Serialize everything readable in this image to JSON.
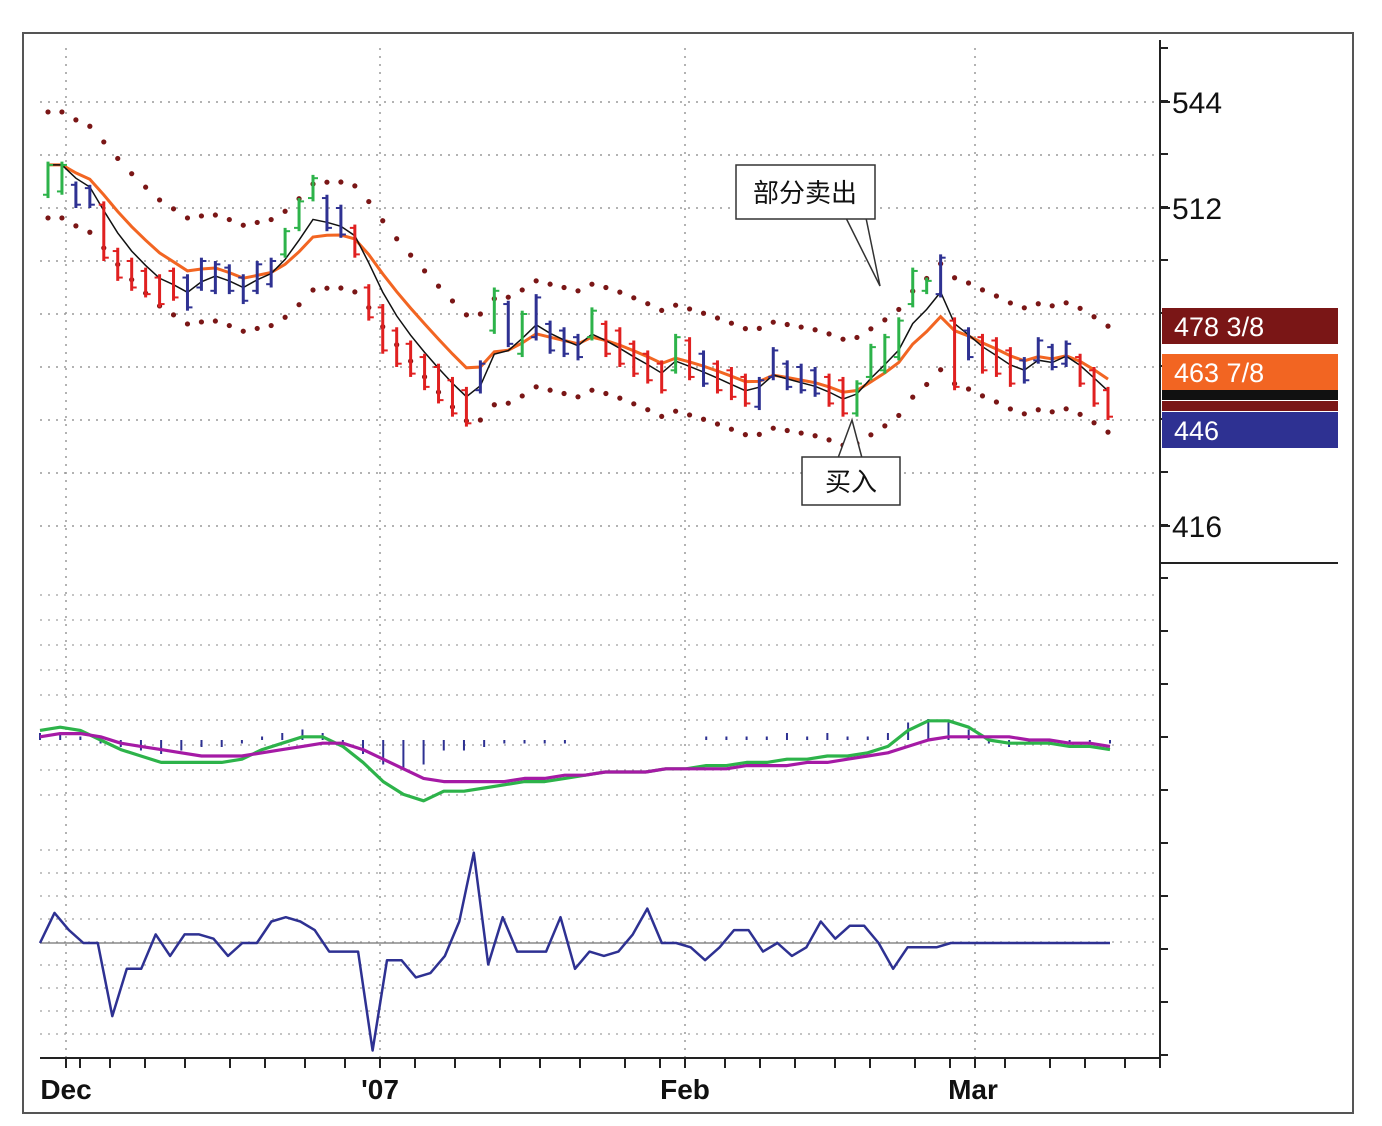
{
  "chart_data": [
    {
      "type": "bar",
      "panel": "price",
      "y_ticks": [
        544,
        512,
        416
      ],
      "ylim": [
        403,
        557
      ],
      "x_ticks": [
        "Dec",
        "'07",
        "Feb",
        "Mar"
      ],
      "price_badges": [
        {
          "label": "478 3/8",
          "value": 478.4,
          "color": "#7a1616"
        },
        {
          "label": "463 7/8",
          "value": 463.9,
          "color": "#f26522"
        },
        {
          "label": "446",
          "value": 446,
          "color": "#2e3192"
        }
      ],
      "annotations": [
        {
          "text": "部分卖出",
          "bar_index": 53
        },
        {
          "text": "买入",
          "bar_index": 51
        }
      ],
      "ohlc_bars": [
        {
          "h": 526,
          "l": 515,
          "o": 516,
          "c": 525,
          "color": "#2db34a"
        },
        {
          "h": 526,
          "l": 516,
          "o": 517,
          "c": 525,
          "color": "#2db34a"
        },
        {
          "h": 520,
          "l": 512,
          "o": 519,
          "c": 513,
          "color": "#2e3192"
        },
        {
          "h": 519,
          "l": 512,
          "o": 518,
          "c": 513,
          "color": "#2e3192"
        },
        {
          "h": 514,
          "l": 496,
          "o": 513,
          "c": 497,
          "color": "#e02020"
        },
        {
          "h": 500,
          "l": 490,
          "o": 499,
          "c": 491,
          "color": "#e02020"
        },
        {
          "h": 497,
          "l": 487,
          "o": 496,
          "c": 488,
          "color": "#e02020"
        },
        {
          "h": 494,
          "l": 485,
          "o": 493,
          "c": 486,
          "color": "#e02020"
        },
        {
          "h": 492,
          "l": 482,
          "o": 491,
          "c": 483,
          "color": "#e02020"
        },
        {
          "h": 494,
          "l": 484,
          "o": 493,
          "c": 485,
          "color": "#e02020"
        },
        {
          "h": 492,
          "l": 481,
          "o": 491,
          "c": 482,
          "color": "#2e3192"
        },
        {
          "h": 497,
          "l": 487,
          "o": 488,
          "c": 496,
          "color": "#2e3192"
        },
        {
          "h": 496,
          "l": 486,
          "o": 487,
          "c": 495,
          "color": "#2e3192"
        },
        {
          "h": 495,
          "l": 486,
          "o": 494,
          "c": 487,
          "color": "#2e3192"
        },
        {
          "h": 492,
          "l": 483,
          "o": 491,
          "c": 484,
          "color": "#2e3192"
        },
        {
          "h": 496,
          "l": 486,
          "o": 487,
          "c": 495,
          "color": "#2e3192"
        },
        {
          "h": 497,
          "l": 488,
          "o": 489,
          "c": 496,
          "color": "#2e3192"
        },
        {
          "h": 506,
          "l": 497,
          "o": 498,
          "c": 505,
          "color": "#2db34a"
        },
        {
          "h": 515,
          "l": 505,
          "o": 506,
          "c": 514,
          "color": "#2db34a"
        },
        {
          "h": 522,
          "l": 514,
          "o": 515,
          "c": 521,
          "color": "#2db34a"
        },
        {
          "h": 516,
          "l": 505,
          "o": 515,
          "c": 506,
          "color": "#2e3192"
        },
        {
          "h": 513,
          "l": 503,
          "o": 512,
          "c": 504,
          "color": "#2e3192"
        },
        {
          "h": 507,
          "l": 497,
          "o": 506,
          "c": 498,
          "color": "#e02020"
        },
        {
          "h": 489,
          "l": 478,
          "o": 488,
          "c": 479,
          "color": "#e02020"
        },
        {
          "h": 483,
          "l": 468,
          "o": 482,
          "c": 469,
          "color": "#e02020"
        },
        {
          "h": 476,
          "l": 464,
          "o": 475,
          "c": 465,
          "color": "#e02020"
        },
        {
          "h": 472,
          "l": 461,
          "o": 471,
          "c": 462,
          "color": "#e02020"
        },
        {
          "h": 468,
          "l": 457,
          "o": 467,
          "c": 458,
          "color": "#e02020"
        },
        {
          "h": 465,
          "l": 453,
          "o": 464,
          "c": 454,
          "color": "#e02020"
        },
        {
          "h": 461,
          "l": 449,
          "o": 460,
          "c": 450,
          "color": "#e02020"
        },
        {
          "h": 458,
          "l": 446,
          "o": 457,
          "c": 447,
          "color": "#e02020"
        },
        {
          "h": 466,
          "l": 456,
          "o": 457,
          "c": 465,
          "color": "#2e3192"
        },
        {
          "h": 488,
          "l": 474,
          "o": 475,
          "c": 487,
          "color": "#2db34a"
        },
        {
          "h": 484,
          "l": 470,
          "o": 483,
          "c": 471,
          "color": "#2e3192"
        },
        {
          "h": 481,
          "l": 467,
          "o": 468,
          "c": 480,
          "color": "#2db34a"
        },
        {
          "h": 486,
          "l": 472,
          "o": 473,
          "c": 485,
          "color": "#2e3192"
        },
        {
          "h": 478,
          "l": 468,
          "o": 477,
          "c": 469,
          "color": "#2e3192"
        },
        {
          "h": 476,
          "l": 467,
          "o": 475,
          "c": 468,
          "color": "#2e3192"
        },
        {
          "h": 474,
          "l": 466,
          "o": 473,
          "c": 467,
          "color": "#2e3192"
        },
        {
          "h": 482,
          "l": 472,
          "o": 473,
          "c": 481,
          "color": "#2db34a"
        },
        {
          "h": 478,
          "l": 467,
          "o": 477,
          "c": 468,
          "color": "#e02020"
        },
        {
          "h": 476,
          "l": 464,
          "o": 475,
          "c": 465,
          "color": "#e02020"
        },
        {
          "h": 472,
          "l": 461,
          "o": 471,
          "c": 462,
          "color": "#e02020"
        },
        {
          "h": 469,
          "l": 459,
          "o": 468,
          "c": 460,
          "color": "#e02020"
        },
        {
          "h": 466,
          "l": 456,
          "o": 465,
          "c": 457,
          "color": "#e02020"
        },
        {
          "h": 474,
          "l": 462,
          "o": 463,
          "c": 473,
          "color": "#2db34a"
        },
        {
          "h": 473,
          "l": 460,
          "o": 472,
          "c": 461,
          "color": "#e02020"
        },
        {
          "h": 469,
          "l": 458,
          "o": 468,
          "c": 459,
          "color": "#2e3192"
        },
        {
          "h": 466,
          "l": 456,
          "o": 465,
          "c": 457,
          "color": "#e02020"
        },
        {
          "h": 464,
          "l": 454,
          "o": 463,
          "c": 455,
          "color": "#e02020"
        },
        {
          "h": 462,
          "l": 452,
          "o": 461,
          "c": 453,
          "color": "#e02020"
        },
        {
          "h": 461,
          "l": 451,
          "o": 452,
          "c": 460,
          "color": "#2e3192"
        },
        {
          "h": 470,
          "l": 460,
          "o": 461,
          "c": 469,
          "color": "#2e3192"
        },
        {
          "h": 466,
          "l": 457,
          "o": 465,
          "c": 458,
          "color": "#2e3192"
        },
        {
          "h": 465,
          "l": 456,
          "o": 464,
          "c": 457,
          "color": "#2e3192"
        },
        {
          "h": 464,
          "l": 455,
          "o": 463,
          "c": 456,
          "color": "#2e3192"
        },
        {
          "h": 462,
          "l": 452,
          "o": 461,
          "c": 453,
          "color": "#e02020"
        },
        {
          "h": 461,
          "l": 449,
          "o": 460,
          "c": 450,
          "color": "#e02020"
        },
        {
          "h": 460,
          "l": 449,
          "o": 450,
          "c": 459,
          "color": "#2db34a"
        },
        {
          "h": 471,
          "l": 460,
          "o": 461,
          "c": 470,
          "color": "#2db34a"
        },
        {
          "h": 474,
          "l": 462,
          "o": 463,
          "c": 473,
          "color": "#2db34a"
        },
        {
          "h": 479,
          "l": 466,
          "o": 467,
          "c": 478,
          "color": "#2db34a"
        },
        {
          "h": 494,
          "l": 482,
          "o": 483,
          "c": 493,
          "color": "#2db34a"
        },
        {
          "h": 491,
          "l": 486,
          "o": 487,
          "c": 490,
          "color": "#2db34a"
        },
        {
          "h": 498,
          "l": 485,
          "o": 486,
          "c": 497,
          "color": "#2e3192"
        },
        {
          "h": 479,
          "l": 457,
          "o": 478,
          "c": 458,
          "color": "#e02020"
        },
        {
          "h": 476,
          "l": 466,
          "o": 475,
          "c": 467,
          "color": "#2e3192"
        },
        {
          "h": 474,
          "l": 462,
          "o": 473,
          "c": 463,
          "color": "#e02020"
        },
        {
          "h": 473,
          "l": 461,
          "o": 472,
          "c": 462,
          "color": "#e02020"
        },
        {
          "h": 470,
          "l": 458,
          "o": 469,
          "c": 459,
          "color": "#e02020"
        },
        {
          "h": 467,
          "l": 459,
          "o": 466,
          "c": 460,
          "color": "#2e3192"
        },
        {
          "h": 473,
          "l": 465,
          "o": 466,
          "c": 472,
          "color": "#2e3192"
        },
        {
          "h": 471,
          "l": 463,
          "o": 470,
          "c": 464,
          "color": "#2e3192"
        },
        {
          "h": 472,
          "l": 464,
          "o": 465,
          "c": 471,
          "color": "#2e3192"
        },
        {
          "h": 468,
          "l": 458,
          "o": 467,
          "c": 459,
          "color": "#e02020"
        },
        {
          "h": 464,
          "l": 452,
          "o": 463,
          "c": 453,
          "color": "#e02020"
        },
        {
          "h": 458,
          "l": 448,
          "o": 457,
          "c": 449,
          "color": "#e02020"
        }
      ]
    },
    {
      "type": "line",
      "panel": "macd",
      "series": [
        {
          "color": "#2db34a",
          "values": [
            3,
            4,
            3,
            0,
            -3,
            -5,
            -7,
            -7,
            -7,
            -7,
            -6,
            -3,
            -1,
            1,
            1,
            -2,
            -7,
            -13,
            -17,
            -19,
            -16,
            -16,
            -15,
            -14,
            -13,
            -13,
            -12,
            -11,
            -10,
            -10,
            -10,
            -9,
            -9,
            -8,
            -8,
            -7,
            -7,
            -6,
            -6,
            -5,
            -5,
            -4,
            -2,
            3,
            6,
            6,
            4,
            0,
            -1,
            -1,
            -1,
            -2,
            -2,
            -3
          ]
        },
        {
          "color": "#a51aa5",
          "values": [
            1,
            2,
            2,
            1,
            -1,
            -2,
            -3,
            -4,
            -5,
            -5,
            -5,
            -4,
            -3,
            -2,
            -1,
            -1,
            -3,
            -6,
            -9,
            -12,
            -13,
            -13,
            -13,
            -13,
            -12,
            -12,
            -11,
            -11,
            -10,
            -10,
            -10,
            -9,
            -9,
            -9,
            -9,
            -8,
            -8,
            -8,
            -7,
            -7,
            -6,
            -5,
            -4,
            -2,
            0,
            1,
            1,
            1,
            1,
            0,
            0,
            -1,
            -1,
            -2
          ]
        }
      ]
    },
    {
      "type": "line",
      "panel": "oscillator",
      "series": [
        {
          "color": "#2e3192",
          "values": [
            0,
            7,
            3,
            0,
            0,
            -17,
            -6,
            -6,
            2,
            -3,
            2,
            2,
            1,
            -3,
            0,
            0,
            5,
            6,
            5,
            3,
            -2,
            -2,
            -2,
            -25,
            -4,
            -4,
            -8,
            -7,
            -3,
            5,
            21,
            -5,
            6,
            -2,
            -2,
            -2,
            6,
            -6,
            -2,
            -3,
            -2,
            2,
            8,
            0,
            0,
            -1,
            -4,
            -1,
            3,
            3,
            -2,
            0,
            -3,
            -1,
            5,
            1,
            4,
            4,
            0,
            -6,
            -1,
            -1,
            -1,
            0,
            0,
            0,
            0,
            0,
            0,
            0,
            0,
            0,
            0,
            0,
            0
          ]
        }
      ]
    }
  ]
}
